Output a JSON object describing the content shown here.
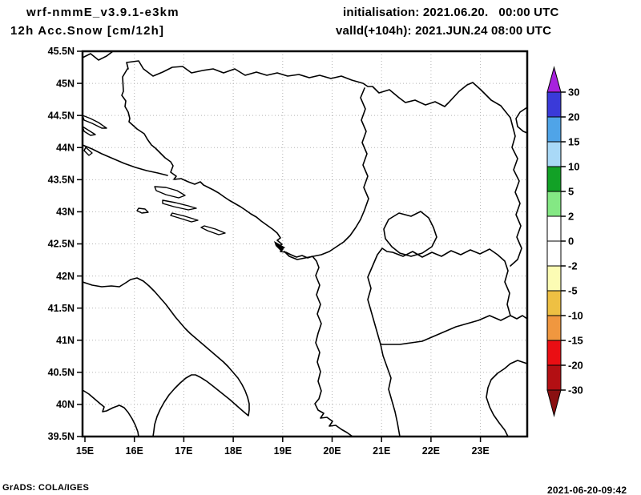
{
  "header": {
    "model_title": "wrf-nmmE_v3.9.1-e3km",
    "product_title": "12h Acc.Snow [cm/12h]",
    "init_line": "initialisation: 2021.06.20.   00:00 UTC",
    "valid_line": "valld(+104h): 2021.JUN.24 08:00 UTC"
  },
  "footer": {
    "grads_credit": "GrADS: COLA/IGES",
    "timestamp": "2021-06-20-09:42"
  },
  "chart_data": {
    "type": "map-shaded-contour",
    "title": "12h Acc.Snow [cm/12h]",
    "model": "wrf-nmmE_v3.9.1-e3km",
    "region": "Adriatic / Balkans",
    "lon_range_deg_e": [
      15,
      24
    ],
    "lat_range_deg_n": [
      39.5,
      45.5
    ],
    "lat_ticks": [
      "45.5N",
      "45N",
      "44.5N",
      "44N",
      "43.5N",
      "43N",
      "42.5N",
      "42N",
      "41.5N",
      "41N",
      "40.5N",
      "40N",
      "39.5N"
    ],
    "lon_ticks": [
      "15E",
      "16E",
      "17E",
      "18E",
      "19E",
      "20E",
      "21E",
      "22E",
      "23E"
    ],
    "grid": "dotted gray, every 0.5 deg latitude and 1 deg longitude",
    "colorbar": {
      "unit": "cm/12h",
      "labels": [
        "30",
        "20",
        "15",
        "10",
        "5",
        "2",
        "0",
        "-2",
        "-5",
        "-10",
        "-15",
        "-20",
        "-30"
      ],
      "colors_top_to_bottom": [
        "#a722dd",
        "#3a3ad9",
        "#4fa4e8",
        "#a9d9f7",
        "#12a126",
        "#84e884",
        "#ffffff",
        "#ffffff",
        "#fcfcb4",
        "#eec043",
        "#f0973f",
        "#ea0e13",
        "#b30f13",
        "#8a1011"
      ]
    },
    "field_note": "No shaded snow accumulation anywhere in the domain; entire map falls in the white 0-2 cm band (outlines only)."
  }
}
